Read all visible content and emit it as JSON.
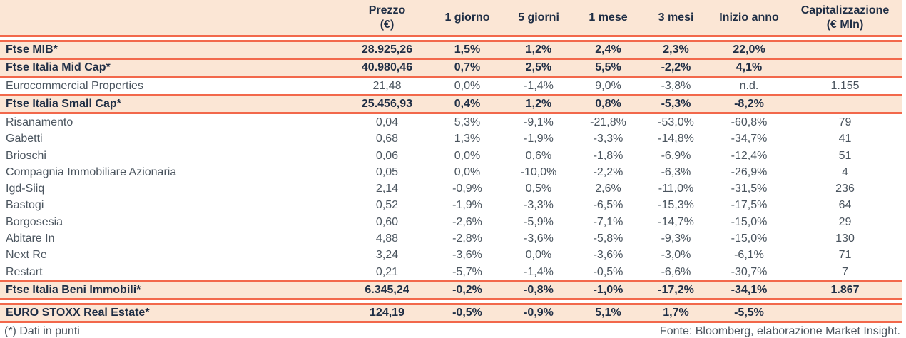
{
  "colors": {
    "accent_line": "#f2684b",
    "highlight_row_bg": "#fbe6d5",
    "heading_text": "#1f2e45",
    "body_text": "#4a545e"
  },
  "header": {
    "columns": [
      {
        "line1": ""
      },
      {
        "line1": "Prezzo",
        "line2": "(€)"
      },
      {
        "line1": "1 giorno"
      },
      {
        "line1": "5 giorni"
      },
      {
        "line1": "1 mese"
      },
      {
        "line1": "3 mesi"
      },
      {
        "line1": "Inizio anno"
      },
      {
        "line1": "Capitalizzazione",
        "line2": "(€ Mln)"
      }
    ]
  },
  "rows": [
    {
      "label": "Ftse MIB*",
      "highlight": true,
      "gap_before": true,
      "values": [
        "28.925,26",
        "1,5%",
        "1,2%",
        "2,4%",
        "2,3%",
        "22,0%",
        ""
      ]
    },
    {
      "label": "Ftse Italia Mid Cap*",
      "highlight": true,
      "gap_before": false,
      "values": [
        "40.980,46",
        "0,7%",
        "2,5%",
        "5,5%",
        "-2,2%",
        "4,1%",
        ""
      ]
    },
    {
      "label": "Eurocommercial Properties",
      "highlight": false,
      "gap_before": false,
      "values": [
        "21,48",
        "0,0%",
        "-1,4%",
        "9,0%",
        "-3,8%",
        "n.d.",
        "1.155"
      ]
    },
    {
      "label": "Ftse Italia Small Cap*",
      "highlight": true,
      "gap_before": false,
      "values": [
        "25.456,93",
        "0,4%",
        "1,2%",
        "0,8%",
        "-5,3%",
        "-8,2%",
        ""
      ]
    },
    {
      "label": "Risanamento",
      "highlight": false,
      "gap_before": false,
      "values": [
        "0,04",
        "5,3%",
        "-9,1%",
        "-21,8%",
        "-53,0%",
        "-60,8%",
        "79"
      ]
    },
    {
      "label": "Gabetti",
      "highlight": false,
      "gap_before": false,
      "values": [
        "0,68",
        "1,3%",
        "-1,9%",
        "-3,3%",
        "-14,8%",
        "-34,7%",
        "41"
      ]
    },
    {
      "label": "Brioschi",
      "highlight": false,
      "gap_before": false,
      "values": [
        "0,06",
        "0,0%",
        "0,6%",
        "-1,8%",
        "-6,9%",
        "-12,4%",
        "51"
      ]
    },
    {
      "label": "Compagnia Immobiliare Azionaria",
      "highlight": false,
      "gap_before": false,
      "values": [
        "0,05",
        "0,0%",
        "-10,0%",
        "-2,2%",
        "-6,3%",
        "-26,9%",
        "4"
      ]
    },
    {
      "label": "Igd-Siiq",
      "highlight": false,
      "gap_before": false,
      "values": [
        "2,14",
        "-0,9%",
        "0,5%",
        "2,6%",
        "-11,0%",
        "-31,5%",
        "236"
      ]
    },
    {
      "label": "Bastogi",
      "highlight": false,
      "gap_before": false,
      "values": [
        "0,52",
        "-1,9%",
        "-3,3%",
        "-6,5%",
        "-15,3%",
        "-17,5%",
        "64"
      ]
    },
    {
      "label": "Borgosesia",
      "highlight": false,
      "gap_before": false,
      "values": [
        "0,60",
        "-2,6%",
        "-5,9%",
        "-7,1%",
        "-14,7%",
        "-15,0%",
        "29"
      ]
    },
    {
      "label": "Abitare In",
      "highlight": false,
      "gap_before": false,
      "values": [
        "4,88",
        "-2,8%",
        "-3,6%",
        "-5,8%",
        "-9,3%",
        "-15,0%",
        "130"
      ]
    },
    {
      "label": "Next Re",
      "highlight": false,
      "gap_before": false,
      "values": [
        "3,24",
        "-3,6%",
        "0,0%",
        "-3,6%",
        "-3,0%",
        "-6,1%",
        "71"
      ]
    },
    {
      "label": "Restart",
      "highlight": false,
      "gap_before": false,
      "values": [
        "0,21",
        "-5,7%",
        "-1,4%",
        "-0,5%",
        "-6,6%",
        "-30,7%",
        "7"
      ]
    },
    {
      "label": "Ftse Italia Beni Immobili*",
      "highlight": true,
      "gap_before": false,
      "values": [
        "6.345,24",
        "-0,2%",
        "-0,8%",
        "-1,0%",
        "-17,2%",
        "-34,1%",
        "1.867"
      ]
    },
    {
      "label": "EURO STOXX Real Estate*",
      "highlight": true,
      "gap_before": true,
      "values": [
        "124,19",
        "-0,5%",
        "-0,9%",
        "5,1%",
        "1,7%",
        "-5,5%",
        ""
      ]
    }
  ],
  "footer": {
    "note": "(*) Dati in punti",
    "source": "Fonte: Bloomberg, elaborazione Market Insight."
  }
}
